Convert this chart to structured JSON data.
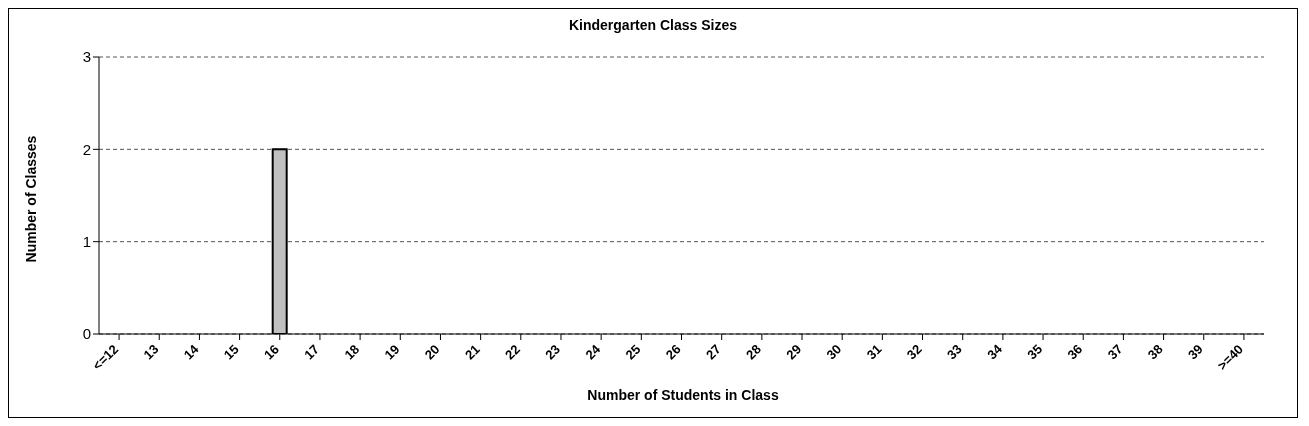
{
  "chart_data": {
    "type": "bar",
    "title": "Kindergarten Class Sizes",
    "xlabel": "Number of Students in Class",
    "ylabel": "Number of Classes",
    "categories": [
      "<=12",
      "13",
      "14",
      "15",
      "16",
      "17",
      "18",
      "19",
      "20",
      "21",
      "22",
      "23",
      "24",
      "25",
      "26",
      "27",
      "28",
      "29",
      "30",
      "31",
      "32",
      "33",
      "34",
      "35",
      "36",
      "37",
      "38",
      "39",
      ">=40"
    ],
    "values": [
      0,
      0,
      0,
      0,
      2,
      0,
      0,
      0,
      0,
      0,
      0,
      0,
      0,
      0,
      0,
      0,
      0,
      0,
      0,
      0,
      0,
      0,
      0,
      0,
      0,
      0,
      0,
      0,
      0
    ],
    "color": "#c0c0c0",
    "ylim": [
      0,
      3
    ],
    "yticks": [
      0,
      1,
      2,
      3
    ],
    "grid": "y",
    "legend": false
  }
}
